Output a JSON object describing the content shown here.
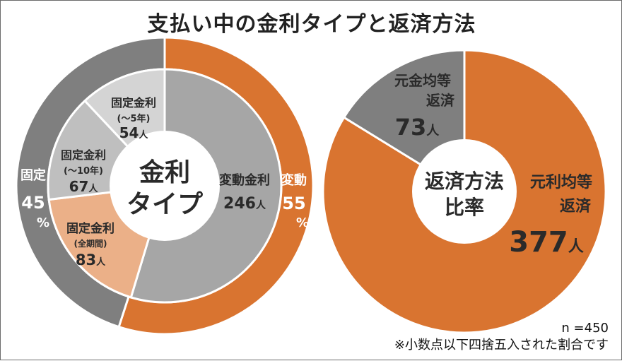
{
  "title": "支払い中の金利タイプと返済方法",
  "n_label": "n =450",
  "note": "※小数点以下四捨五入された割合です",
  "colors": {
    "orange": "#d97430",
    "gray_dark": "#7f7f7f",
    "gray_mid": "#a6a6a6",
    "gray_light": "#bfbfbf",
    "gray_lighter": "#d4d4d4",
    "peach": "#ebb088"
  },
  "chart_data": [
    {
      "type": "pie",
      "center_label": [
        "金利",
        "タイプ"
      ],
      "outer_ring": [
        {
          "name": "変動",
          "value": 55,
          "label": "変動",
          "value_label": "55",
          "unit": "%"
        },
        {
          "name": "固定",
          "value": 45,
          "label": "固定",
          "value_label": "45",
          "unit": "%"
        }
      ],
      "inner_ring": [
        {
          "name": "変動金利",
          "value": 246,
          "label": "変動金利",
          "value_label": "246",
          "unit": "人"
        },
        {
          "name": "固定金利（全期間）",
          "value": 83,
          "label": "固定金利",
          "sub_label": "(全期間)",
          "value_label": "83",
          "unit": "人"
        },
        {
          "name": "固定金利（～10年）",
          "value": 67,
          "label": "固定金利",
          "sub_label": "(～10年)",
          "value_label": "67",
          "unit": "人"
        },
        {
          "name": "固定金利（～5年）",
          "value": 54,
          "label": "固定金利",
          "sub_label": "(～5年)",
          "value_label": "54",
          "unit": "人"
        }
      ]
    },
    {
      "type": "pie",
      "center_label": [
        "返済方法",
        "比率"
      ],
      "slices": [
        {
          "name": "元利均等返済",
          "value": 377,
          "label_lines": [
            "元利均等",
            "返済"
          ],
          "value_label": "377",
          "unit": "人"
        },
        {
          "name": "元金均等返済",
          "value": 73,
          "label_lines": [
            "元金均等",
            "返済"
          ],
          "value_label": "73",
          "unit": "人"
        }
      ]
    }
  ]
}
